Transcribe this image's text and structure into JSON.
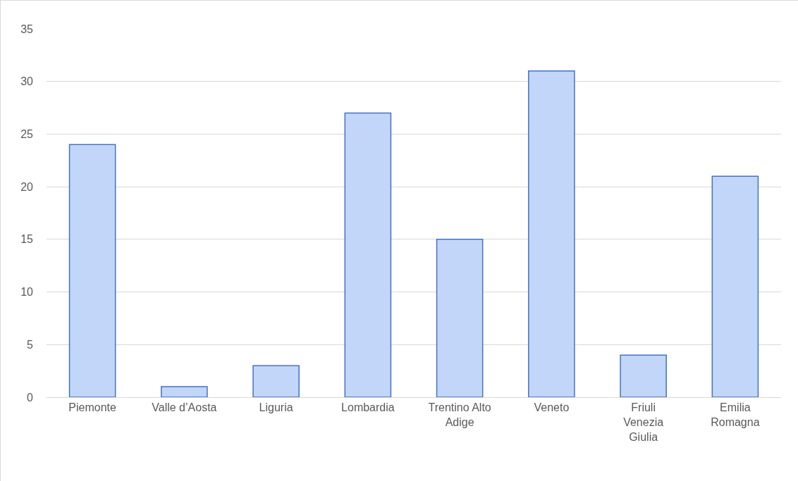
{
  "chart_data": {
    "type": "bar",
    "categories": [
      "Piemonte",
      "Valle d’Aosta",
      "Liguria",
      "Lombardia",
      "Trentino Alto Adige",
      "Veneto",
      "Friuli Venezia Giulia",
      "Emilia Romagna"
    ],
    "values": [
      24,
      1,
      3,
      27,
      15,
      31,
      4,
      21
    ],
    "color": "#c2d6fa",
    "ylim": [
      0,
      35
    ],
    "yticks": [
      0,
      5,
      10,
      15,
      20,
      25,
      30,
      35
    ],
    "grid": "y"
  }
}
